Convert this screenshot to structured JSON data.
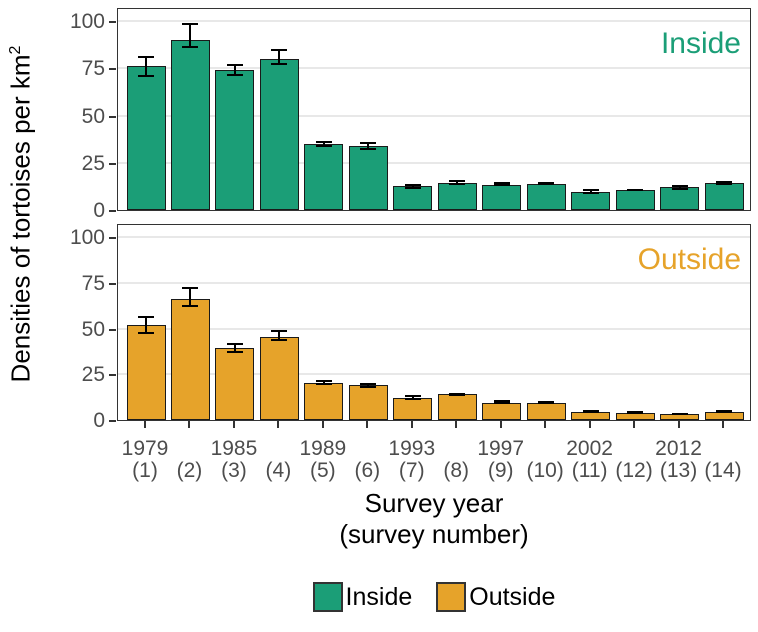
{
  "ylabel": {
    "text": "Densities of tortoises per km",
    "sup": "2"
  },
  "x_axis_title_line1": "Survey year",
  "x_axis_title_line2": "(survey number)",
  "legend": {
    "position": "bottom",
    "items": [
      {
        "label": "Inside",
        "color": "#1b9e77"
      },
      {
        "label": "Outside",
        "color": "#e6a32a"
      }
    ]
  },
  "colors": {
    "inside": "#1b9e77",
    "outside": "#e6a32a",
    "panel_border": "#333333",
    "axis_text": "#4d4d4d",
    "gridline": "#e8e8e8",
    "error_bar": "#000000",
    "bar_outline": "#1a1a1a",
    "background": "#ffffff"
  },
  "chart_data": [
    {
      "type": "bar",
      "panel_label": "Inside",
      "color": "#1b9e77",
      "ylim": [
        0,
        105
      ],
      "yticks": [
        0,
        25,
        50,
        75,
        100
      ],
      "grid": "horizontal major gridlines only",
      "ylabel": "Densities of tortoises per km2",
      "xlabel": "Survey year (survey number)",
      "x_years": [
        "1979",
        "",
        "1985",
        "",
        "1989",
        "",
        "1993",
        "",
        "1997",
        "",
        "2002",
        "",
        "2012",
        ""
      ],
      "x_numbers": [
        "(1)",
        "(2)",
        "(3)",
        "(4)",
        "(5)",
        "(6)",
        "(7)",
        "(8)",
        "(9)",
        "(10)",
        "(11)",
        "(12)",
        "(13)",
        "(14)"
      ],
      "values": [
        76,
        90,
        74,
        80,
        35,
        34,
        12.5,
        14.5,
        13.5,
        14,
        9.5,
        10.5,
        12,
        14.5
      ],
      "err_lo": [
        70.5,
        85.5,
        71,
        76.5,
        33.5,
        32,
        11,
        13.5,
        12.5,
        13,
        8.5,
        10,
        10.5,
        13.5
      ],
      "err_hi": [
        81.5,
        99,
        77,
        85,
        36.5,
        36,
        14,
        16,
        15,
        15,
        11,
        11,
        13.5,
        15.5
      ]
    },
    {
      "type": "bar",
      "panel_label": "Outside",
      "color": "#e6a32a",
      "ylim": [
        0,
        105
      ],
      "yticks": [
        0,
        25,
        50,
        75,
        100
      ],
      "grid": "horizontal major gridlines only",
      "ylabel": "Densities of tortoises per km2",
      "xlabel": "Survey year (survey number)",
      "x_years": [
        "1979",
        "",
        "1985",
        "",
        "1989",
        "",
        "1993",
        "",
        "1997",
        "",
        "2002",
        "",
        "2012",
        ""
      ],
      "x_numbers": [
        "(1)",
        "(2)",
        "(3)",
        "(4)",
        "(5)",
        "(6)",
        "(7)",
        "(8)",
        "(9)",
        "(10)",
        "(11)",
        "(12)",
        "(13)",
        "(14)"
      ],
      "values": [
        52,
        66,
        39.5,
        45.5,
        20.5,
        19,
        12,
        14,
        9.5,
        9.5,
        4.5,
        4,
        3.5,
        4.5
      ],
      "err_lo": [
        47,
        61.5,
        36.5,
        43,
        19,
        17.5,
        11,
        13,
        8.5,
        8.5,
        4,
        3.5,
        3,
        4
      ],
      "err_hi": [
        57,
        72.5,
        42,
        49,
        22,
        20.5,
        13.5,
        15,
        11,
        10.5,
        5.5,
        5,
        4,
        5.5
      ]
    }
  ]
}
